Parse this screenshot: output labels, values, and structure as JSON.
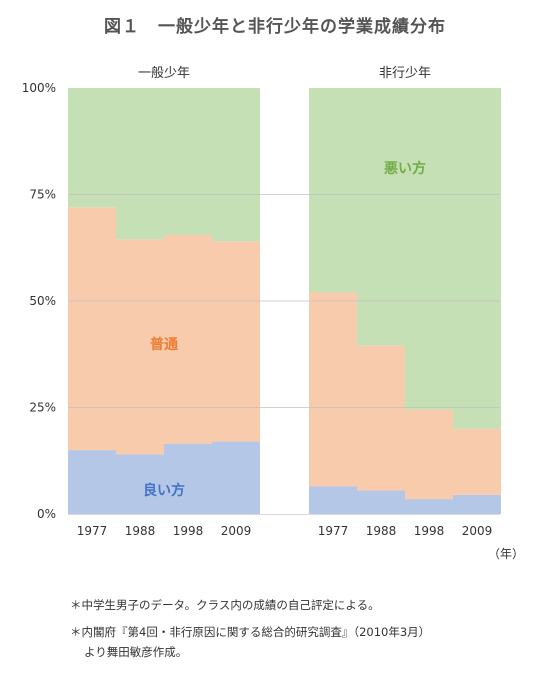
{
  "title": "図１　一般少年と非行少年の学業成績分布",
  "unit_label": "（年）",
  "notes": [
    "＊中学生男子のデータ。クラス内の成績の自己評定による。",
    "＊内閣府『第4回・非行原因に関する総合的研究調査』（2010年3月）",
    "より舞田敏彦作成。"
  ],
  "colors": {
    "bad": "#c5e0b4",
    "normal": "#f8cbad",
    "good": "#b4c7e7",
    "bad_text": "#70ad47",
    "normal_text": "#ed7d31",
    "good_text": "#4472c4"
  },
  "chart_data": [
    {
      "type": "bar",
      "stacked": true,
      "title": "一般少年",
      "categories": [
        "1977",
        "1988",
        "1998",
        "2009"
      ],
      "ylim": [
        0,
        100
      ],
      "yticks": [
        "0%",
        "25%",
        "50%",
        "75%",
        "100%"
      ],
      "series": [
        {
          "name": "良い方",
          "values": [
            15,
            14,
            16.5,
            17
          ]
        },
        {
          "name": "普通",
          "values": [
            57,
            50.5,
            49,
            47
          ]
        },
        {
          "name": "悪い方",
          "values": [
            28,
            35.5,
            34.5,
            36
          ]
        }
      ]
    },
    {
      "type": "bar",
      "stacked": true,
      "title": "非行少年",
      "categories": [
        "1977",
        "1988",
        "1998",
        "2009"
      ],
      "ylim": [
        0,
        100
      ],
      "series": [
        {
          "name": "良い方",
          "values": [
            6.5,
            5.5,
            3.5,
            4.5
          ]
        },
        {
          "name": "普通",
          "values": [
            45.5,
            34,
            21,
            15.5
          ]
        },
        {
          "name": "悪い方",
          "values": [
            48,
            60.5,
            75.5,
            80
          ]
        }
      ]
    }
  ]
}
